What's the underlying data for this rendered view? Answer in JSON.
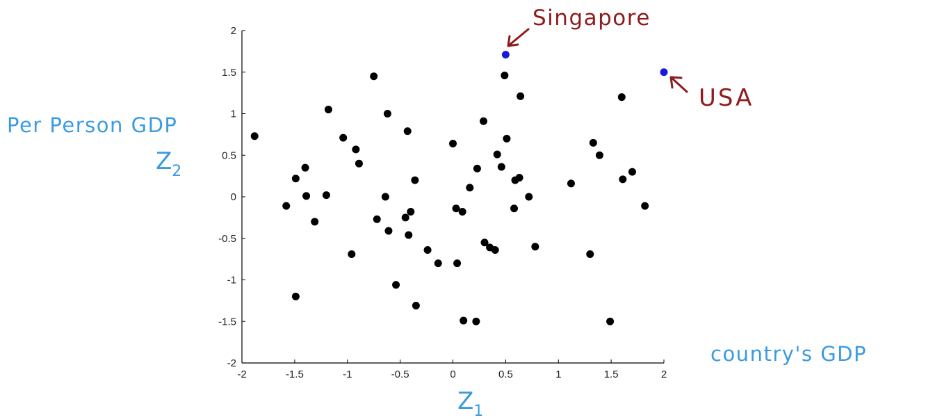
{
  "chart_data": {
    "type": "scatter",
    "title": "",
    "xlabel": "Z",
    "xlabel_sub": "1",
    "ylabel": "Z",
    "ylabel_sub": "2",
    "xlim": [
      -2,
      2
    ],
    "ylim": [
      -2,
      2
    ],
    "xticks": [
      -2,
      -1.5,
      -1,
      -0.5,
      0,
      0.5,
      1,
      1.5,
      2
    ],
    "yticks": [
      -2,
      -1.5,
      -1,
      -0.5,
      0,
      0.5,
      1,
      1.5,
      2
    ],
    "xtick_labels": [
      "-2",
      "-1.5",
      "-1",
      "-0.5",
      "0",
      "0.5",
      "1",
      "1.5",
      "2"
    ],
    "ytick_labels": [
      "-2",
      "-1.5",
      "-1",
      "-0.5",
      "0",
      "0.5",
      "1",
      "1.5",
      "2"
    ],
    "grid": false,
    "series": [
      {
        "color": "#000000",
        "points": [
          [
            -1.88,
            0.73
          ],
          [
            -1.58,
            -0.11
          ],
          [
            -1.49,
            0.22
          ],
          [
            -1.49,
            -1.2
          ],
          [
            -1.4,
            0.35
          ],
          [
            -1.39,
            0.01
          ],
          [
            -1.31,
            -0.3
          ],
          [
            -1.2,
            0.02
          ],
          [
            -1.18,
            1.05
          ],
          [
            -1.04,
            0.71
          ],
          [
            -0.96,
            -0.69
          ],
          [
            -0.92,
            0.57
          ],
          [
            -0.89,
            0.4
          ],
          [
            -0.75,
            1.45
          ],
          [
            -0.72,
            -0.27
          ],
          [
            -0.64,
            0.0
          ],
          [
            -0.62,
            1.0
          ],
          [
            -0.61,
            -0.41
          ],
          [
            -0.54,
            -1.06
          ],
          [
            -0.45,
            -0.25
          ],
          [
            -0.43,
            0.79
          ],
          [
            -0.42,
            -0.46
          ],
          [
            -0.4,
            -0.18
          ],
          [
            -0.36,
            0.2
          ],
          [
            -0.35,
            -1.31
          ],
          [
            -0.24,
            -0.64
          ],
          [
            -0.14,
            -0.8
          ],
          [
            0.0,
            0.64
          ],
          [
            0.03,
            -0.14
          ],
          [
            0.04,
            -0.8
          ],
          [
            0.09,
            -0.18
          ],
          [
            0.1,
            -1.49
          ],
          [
            0.16,
            0.11
          ],
          [
            0.22,
            -1.5
          ],
          [
            0.23,
            0.34
          ],
          [
            0.29,
            0.91
          ],
          [
            0.3,
            -0.55
          ],
          [
            0.35,
            -0.61
          ],
          [
            0.4,
            -0.64
          ],
          [
            0.42,
            0.51
          ],
          [
            0.46,
            0.36
          ],
          [
            0.49,
            1.46
          ],
          [
            0.51,
            0.7
          ],
          [
            0.58,
            -0.14
          ],
          [
            0.59,
            0.2
          ],
          [
            0.63,
            0.23
          ],
          [
            0.64,
            1.21
          ],
          [
            0.72,
            0.0
          ],
          [
            0.78,
            -0.6
          ],
          [
            1.12,
            0.16
          ],
          [
            1.3,
            -0.69
          ],
          [
            1.33,
            0.65
          ],
          [
            1.39,
            0.5
          ],
          [
            1.49,
            -1.5
          ],
          [
            1.6,
            1.2
          ],
          [
            1.61,
            0.21
          ],
          [
            1.7,
            0.3
          ],
          [
            1.82,
            -0.11
          ]
        ]
      },
      {
        "color": "#1a1ad6",
        "points": [
          [
            0.5,
            1.71
          ],
          [
            2.0,
            1.5
          ]
        ]
      }
    ],
    "annotations": [
      {
        "text": "Singapore",
        "x": 0.5,
        "y": 1.71,
        "color": "#8e1c1c"
      },
      {
        "text": "USA",
        "x": 2.0,
        "y": 1.5,
        "color": "#8e1c1c"
      }
    ]
  },
  "labels": {
    "y_desc": "Per Person GDP",
    "x_desc": "country's GDP",
    "singapore": "Singapore",
    "usa": "USA",
    "z1_main": "Z",
    "z1_sub": "1",
    "z2_main": "Z",
    "z2_sub": "2"
  },
  "colors": {
    "handwriting_blue": "#3b9be0",
    "handwriting_red": "#8e1c1c",
    "points_black": "#000000",
    "points_highlight": "#1a1ad6"
  }
}
